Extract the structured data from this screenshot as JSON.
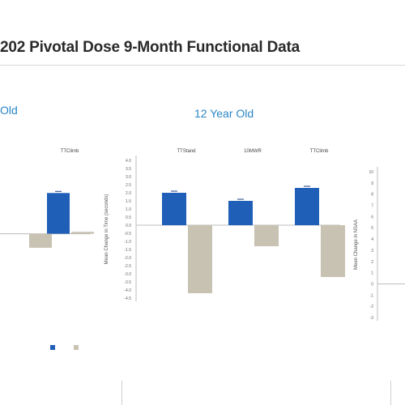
{
  "slide": {
    "title": "202 Pivotal Dose 9-Month Functional Data"
  },
  "panels": [
    {
      "heading": "Old"
    },
    {
      "heading": "12 Year Old"
    },
    {
      "heading": ""
    }
  ],
  "chart_data": [
    {
      "type": "bar",
      "title": "Old",
      "categories": [
        "",
        "TTClimb"
      ],
      "series": [
        {
          "name": "",
          "color": "#1f5fb8",
          "values": [
            null,
            3.2
          ]
        },
        {
          "name": "",
          "color": "#c8c2b3",
          "values": [
            -1.1,
            0.15
          ]
        }
      ],
      "ylim": [
        -2,
        5
      ]
    },
    {
      "type": "bar",
      "title": "12 Year Old",
      "categories": [
        "TTStand",
        "10MWR",
        "TTClimb"
      ],
      "series": [
        {
          "name": "",
          "color": "#1f5fb8",
          "values": [
            2.0,
            1.5,
            2.3
          ]
        },
        {
          "name": "",
          "color": "#c8c2b3",
          "values": [
            -4.2,
            -1.3,
            -3.2
          ]
        }
      ],
      "ylabel": "Mean Change in Time (seconds)",
      "yticks": [
        "4.0",
        "3.5",
        "3.0",
        "2.5",
        "2.0",
        "1.5",
        "1.0",
        "0.5",
        "0.0",
        "-0.5",
        "-1.0",
        "-1.5",
        "-2.0",
        "-2.5",
        "-3.0",
        "-3.5",
        "-4.0",
        "-4.5"
      ],
      "ylim": [
        -4.5,
        4.0
      ]
    },
    {
      "type": "bar",
      "title": "",
      "categories": [],
      "series": [],
      "ylabel": "Mean Change in NSAA",
      "yticks": [
        "10",
        "9",
        "8",
        "7",
        "6",
        "5",
        "4",
        "3",
        "2",
        "1",
        "0",
        "-1",
        "-2",
        "-3"
      ],
      "ylim": [
        -3,
        10
      ]
    }
  ],
  "colors": {
    "accent": "#1f5fb8",
    "comparator": "#c8c2b3",
    "heading": "#2b86c5"
  }
}
